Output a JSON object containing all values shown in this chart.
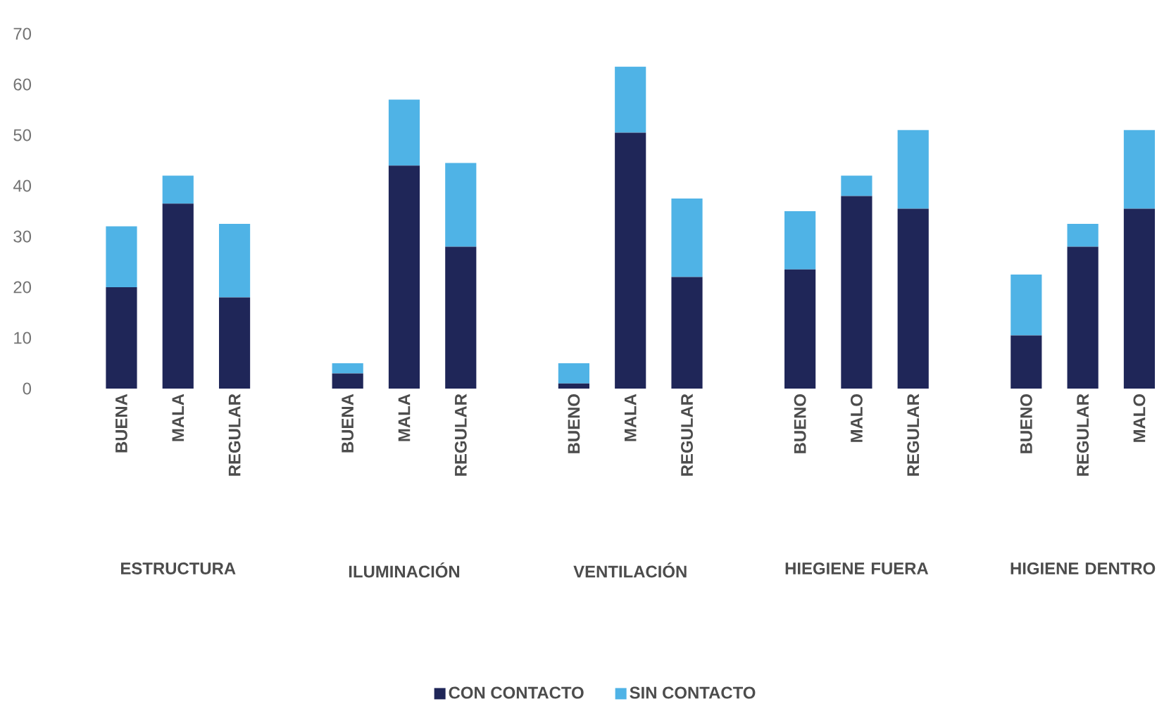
{
  "chart_data": {
    "type": "bar",
    "stacked": true,
    "categories": [
      "BUENA",
      "MALA",
      "REGULAR",
      "BUENA",
      "MALA",
      "REGULAR",
      "BUENO",
      "MALA",
      "REGULAR",
      "BUENO",
      "MALO",
      "REGULAR",
      "BUENO",
      "REGULAR",
      "MALO"
    ],
    "series": [
      {
        "name": "CON CONTACTO",
        "color": "#1f2658",
        "values": [
          20,
          36.5,
          18,
          3,
          44,
          28,
          1,
          50.5,
          22,
          23.5,
          38,
          35.5,
          10.5,
          28,
          35.5
        ]
      },
      {
        "name": "SIN CONTACTO",
        "color": "#4fb3e6",
        "values": [
          12,
          5.5,
          14.5,
          2,
          13,
          16.5,
          4,
          13,
          15.5,
          11.5,
          4,
          15.5,
          12,
          4.5,
          15.5
        ]
      }
    ],
    "ylim": [
      0,
      70
    ],
    "yticks": [
      0,
      10,
      20,
      30,
      40,
      50,
      60,
      70
    ],
    "legend": "bottom",
    "annotations": [
      "ESTRUCTURA",
      "ILUMINACIÓN",
      "VENTILACIÓN",
      "HIEGIENE FUERA",
      "HIGIENE DENTRO"
    ]
  }
}
